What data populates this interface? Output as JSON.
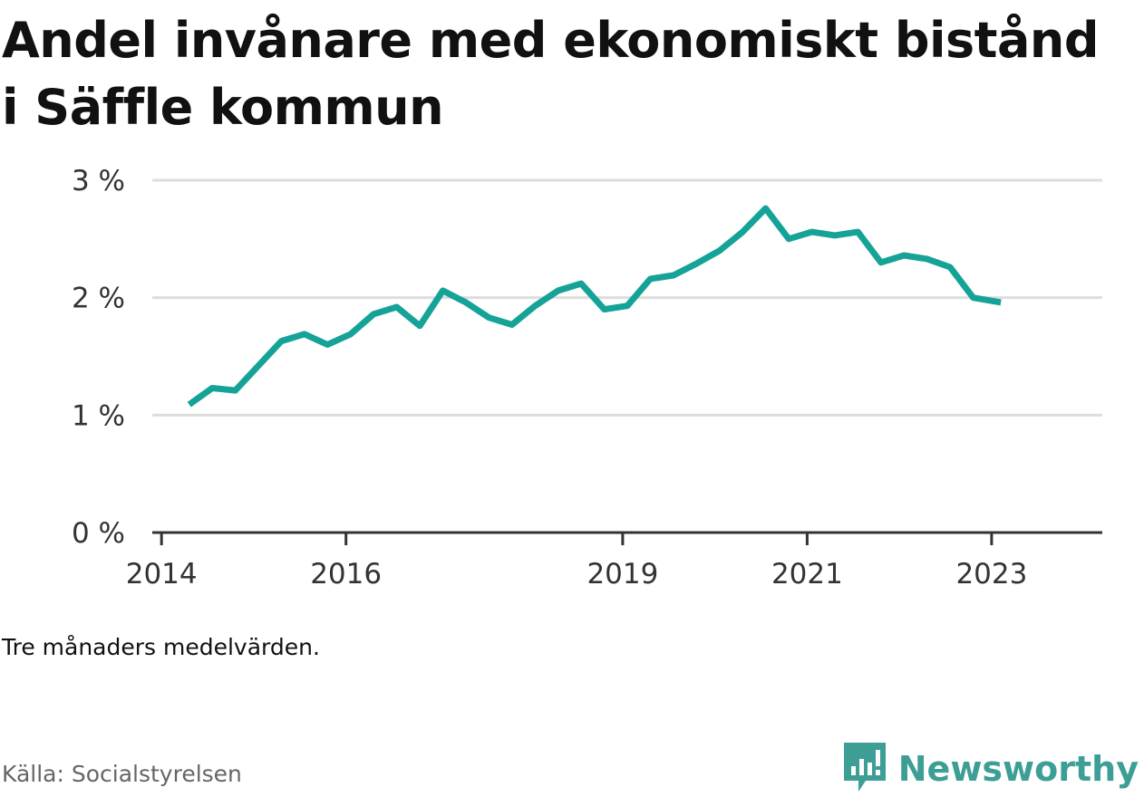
{
  "title": "Andel invånare med ekonomiskt bistånd i Säffle kommun",
  "note": "Tre månaders medelvärden.",
  "source": "Källa: Socialstyrelsen",
  "brand": {
    "name": "Newsworthy",
    "icon": "newsworthy-logo-icon",
    "color": "#3d9e96"
  },
  "colors": {
    "line": "#15a397",
    "grid": "#dddddd",
    "axis": "#333333"
  },
  "chart_data": {
    "type": "line",
    "title": "Andel invånare med ekonomiskt bistånd i Säffle kommun",
    "xlabel": "",
    "ylabel": "",
    "y_tick_labels": [
      "0 %",
      "1 %",
      "2 %",
      "3 %"
    ],
    "y_ticks": [
      0,
      1,
      2,
      3
    ],
    "ylim": [
      0,
      3
    ],
    "x_tick_labels": [
      "2014",
      "2016",
      "2019",
      "2021",
      "2023"
    ],
    "x_ticks": [
      2014,
      2016,
      2019,
      2021,
      2023
    ],
    "xlim": [
      2013.9,
      2024.2
    ],
    "grid": true,
    "series": [
      {
        "values_note": "quarterly, x in fractional years",
        "x": [
          2014.3,
          2014.55,
          2014.8,
          2015.05,
          2015.3,
          2015.55,
          2015.8,
          2016.05,
          2016.3,
          2016.55,
          2016.8,
          2017.05,
          2017.3,
          2017.55,
          2017.8,
          2018.05,
          2018.3,
          2018.55,
          2018.8,
          2019.05,
          2019.3,
          2019.55,
          2019.8,
          2020.05,
          2020.3,
          2020.55,
          2020.8,
          2021.05,
          2021.3,
          2021.55,
          2021.8,
          2022.05,
          2022.3,
          2022.55,
          2022.8,
          2023.1
        ],
        "y": [
          1.09,
          1.23,
          1.21,
          1.42,
          1.63,
          1.69,
          1.6,
          1.69,
          1.86,
          1.92,
          1.76,
          2.06,
          1.96,
          1.83,
          1.77,
          1.93,
          2.06,
          2.12,
          1.9,
          1.93,
          2.16,
          2.19,
          2.29,
          2.4,
          2.56,
          2.76,
          2.5,
          2.56,
          2.53,
          2.56,
          2.3,
          2.36,
          2.33,
          2.26,
          2.0,
          1.96
        ]
      }
    ]
  }
}
